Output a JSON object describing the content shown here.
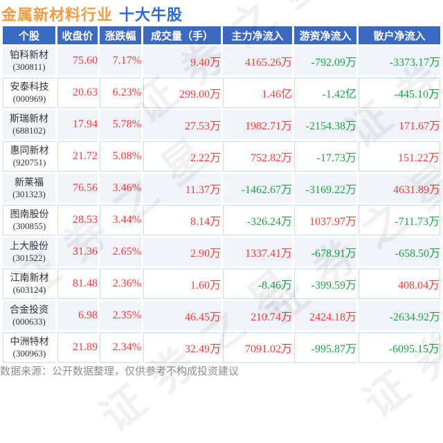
{
  "title": {
    "industry": "金属新材料行业",
    "topic": "十大牛股"
  },
  "columns": [
    {
      "key": "stock",
      "label": "个股"
    },
    {
      "key": "close",
      "label": "收盘价"
    },
    {
      "key": "change",
      "label": "涨跌幅"
    },
    {
      "key": "volume",
      "label": "成交量（手）"
    },
    {
      "key": "main-inflow",
      "label": "主力净流入"
    },
    {
      "key": "hotmoney-inflow",
      "label": "游资净流入"
    },
    {
      "key": "retail-inflow",
      "label": "散户净流入"
    }
  ],
  "rows": [
    {
      "name": "铂科新材",
      "code": "(300811)",
      "close": "75.60",
      "change": "7.17%",
      "volume": "9.40万",
      "main": {
        "v": "4165.26万",
        "d": "up"
      },
      "hot": {
        "v": "-792.09万",
        "d": "down"
      },
      "retail": {
        "v": "-3373.17万",
        "d": "down"
      }
    },
    {
      "name": "安泰科技",
      "code": "(000969)",
      "close": "20.63",
      "change": "6.23%",
      "volume": "299.00万",
      "main": {
        "v": "1.46亿",
        "d": "up"
      },
      "hot": {
        "v": "-1.42亿",
        "d": "down"
      },
      "retail": {
        "v": "-445.10万",
        "d": "down"
      }
    },
    {
      "name": "斯瑞新材",
      "code": "(688102)",
      "close": "17.94",
      "change": "5.78%",
      "volume": "27.53万",
      "main": {
        "v": "1982.71万",
        "d": "up"
      },
      "hot": {
        "v": "-2154.38万",
        "d": "down"
      },
      "retail": {
        "v": "171.67万",
        "d": "up"
      }
    },
    {
      "name": "惠同新材",
      "code": "(920751)",
      "close": "21.72",
      "change": "5.08%",
      "volume": "2.22万",
      "main": {
        "v": "752.82万",
        "d": "up"
      },
      "hot": {
        "v": "-17.73万",
        "d": "down"
      },
      "retail": {
        "v": "151.22万",
        "d": "up"
      }
    },
    {
      "name": "新莱福",
      "code": "(301323)",
      "close": "76.56",
      "change": "3.46%",
      "volume": "11.37万",
      "main": {
        "v": "-1462.67万",
        "d": "down"
      },
      "hot": {
        "v": "-3169.22万",
        "d": "down"
      },
      "retail": {
        "v": "4631.89万",
        "d": "up"
      }
    },
    {
      "name": "图南股份",
      "code": "(300855)",
      "close": "28.53",
      "change": "3.44%",
      "volume": "8.14万",
      "main": {
        "v": "-326.24万",
        "d": "down"
      },
      "hot": {
        "v": "1037.97万",
        "d": "up"
      },
      "retail": {
        "v": "-711.73万",
        "d": "down"
      }
    },
    {
      "name": "上大股份",
      "code": "(301522)",
      "close": "31.36",
      "change": "2.65%",
      "volume": "2.90万",
      "main": {
        "v": "1337.41万",
        "d": "up"
      },
      "hot": {
        "v": "-678.91万",
        "d": "down"
      },
      "retail": {
        "v": "-658.50万",
        "d": "down"
      }
    },
    {
      "name": "江南新材",
      "code": "(603124)",
      "close": "81.48",
      "change": "2.36%",
      "volume": "1.60万",
      "main": {
        "v": "-8.46万",
        "d": "down"
      },
      "hot": {
        "v": "-399.59万",
        "d": "down"
      },
      "retail": {
        "v": "408.04万",
        "d": "up"
      }
    },
    {
      "name": "合金投资",
      "code": "(000633)",
      "close": "6.98",
      "change": "2.35%",
      "volume": "46.45万",
      "main": {
        "v": "210.74万",
        "d": "up"
      },
      "hot": {
        "v": "2424.18万",
        "d": "up"
      },
      "retail": {
        "v": "-2634.92万",
        "d": "down"
      }
    },
    {
      "name": "中洲特材",
      "code": "(300963)",
      "close": "21.89",
      "change": "2.34%",
      "volume": "32.49万",
      "main": {
        "v": "7091.02万",
        "d": "up"
      },
      "hot": {
        "v": "-995.87万",
        "d": "down"
      },
      "retail": {
        "v": "-6095.15万",
        "d": "down"
      }
    }
  ],
  "footer": {
    "note": "数据来源：公开数据整理，仅供参考不构成投资建议"
  },
  "watermark": {
    "text": "证券之星"
  },
  "colors": {
    "up": "#f63c3c",
    "down": "#1ea34a",
    "header_bg": "#3a69c1",
    "title_industry": "#f59b42",
    "title_topic": "#2d6ad3",
    "alt_row_bg": "#f0f4f8",
    "grid_line": "#c7dbf1",
    "stock_text": "#333333",
    "footer_text": "#8e8e8e"
  }
}
